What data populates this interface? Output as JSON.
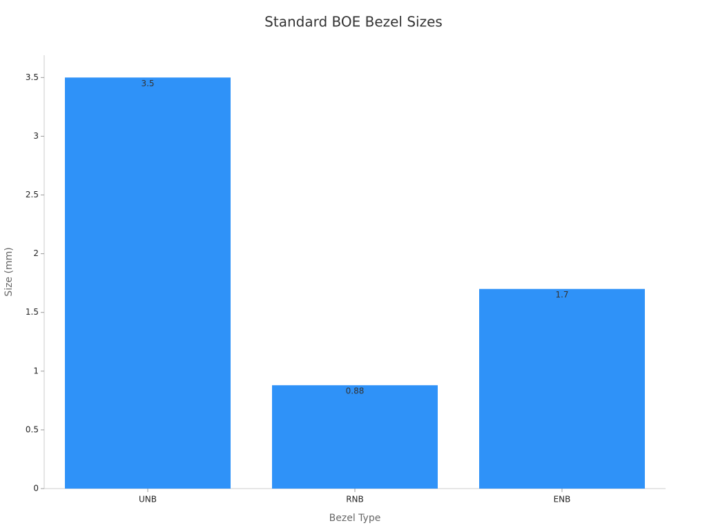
{
  "chart_data": {
    "type": "bar",
    "title": "Standard BOE Bezel Sizes",
    "xlabel": "Bezel Type",
    "ylabel": "Size (mm)",
    "categories": [
      "UNB",
      "RNB",
      "ENB"
    ],
    "values": [
      3.5,
      0.88,
      1.7
    ],
    "color": "#2f92f8",
    "ylim": [
      0,
      3.69
    ],
    "yticks": [
      0,
      0.5,
      1,
      1.5,
      2,
      2.5,
      3,
      3.5
    ],
    "grid": false
  }
}
